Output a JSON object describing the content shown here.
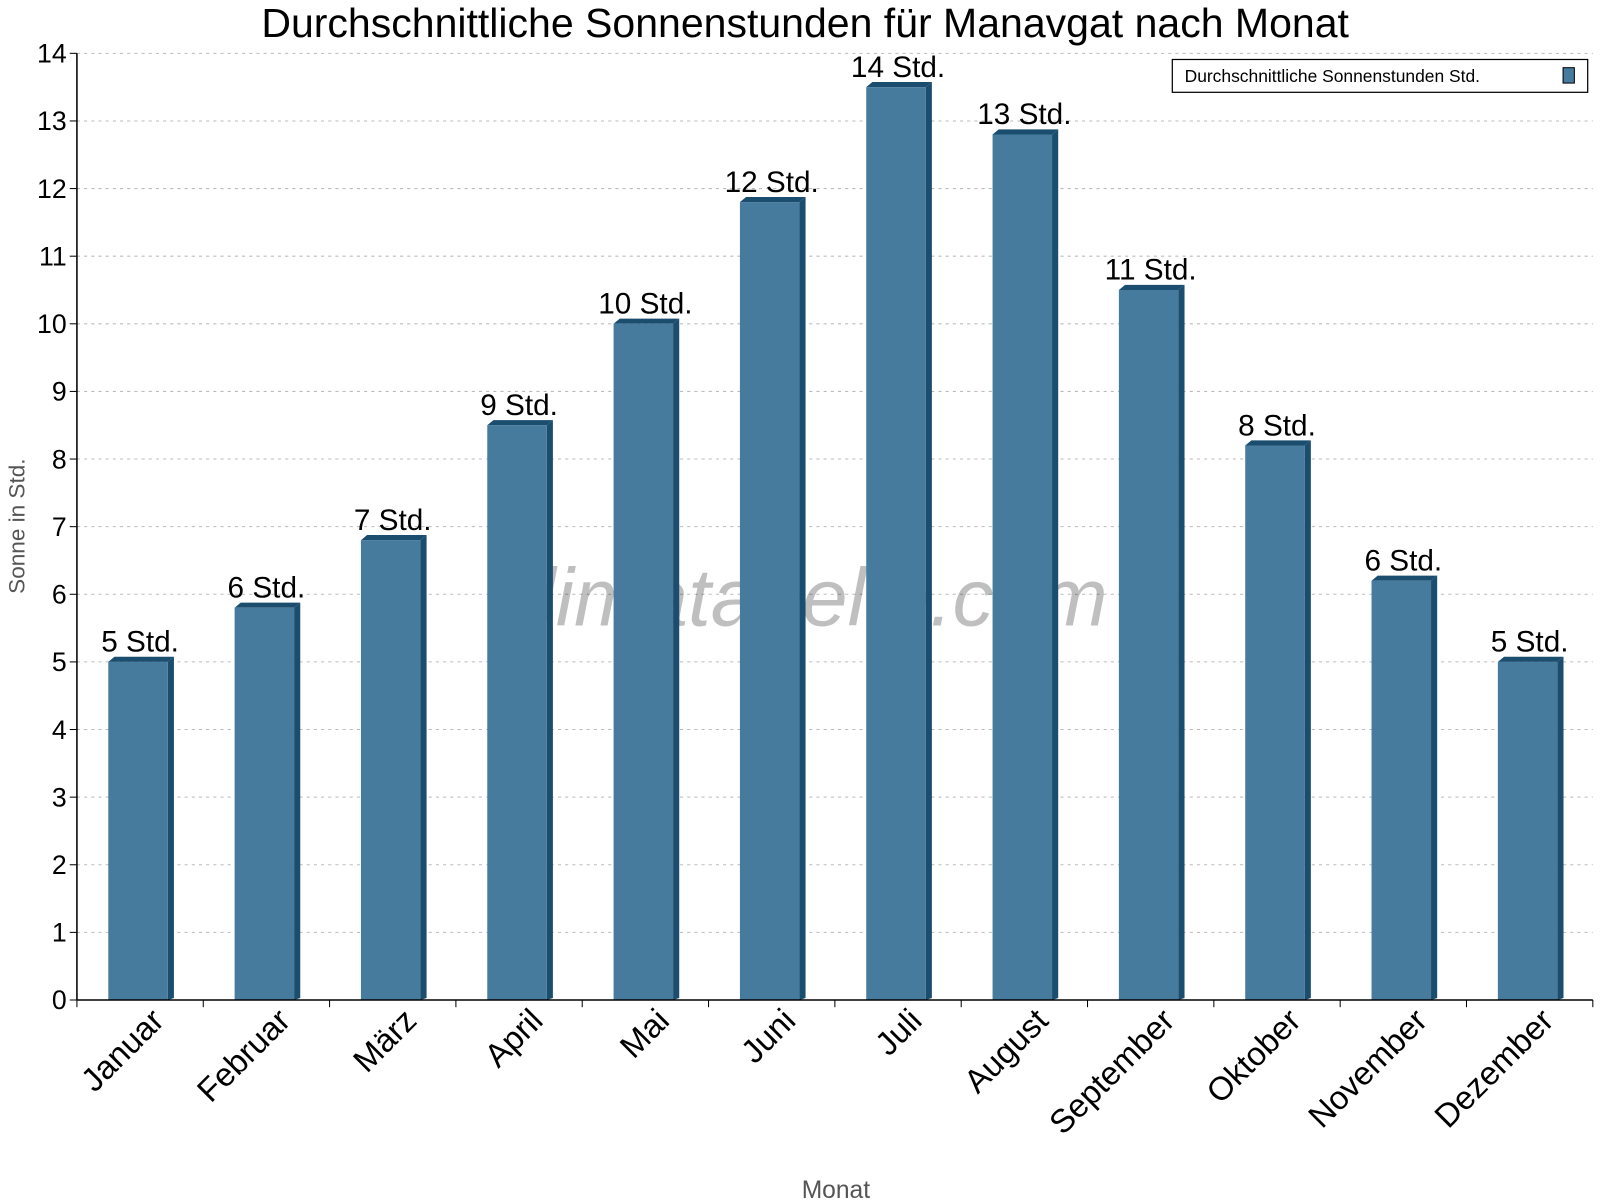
{
  "chart_data": {
    "type": "bar",
    "title": "Durchschnittliche Sonnenstunden für Manavgat nach Monat",
    "xlabel": "Monat",
    "ylabel": "Sonne in Std.",
    "ylim": [
      0,
      14
    ],
    "yticks": [
      "0",
      "1",
      "2",
      "3",
      "4",
      "5",
      "6",
      "7",
      "8",
      "9",
      "10",
      "11",
      "12",
      "13",
      "14"
    ],
    "grid": true,
    "legend_position": "top-right",
    "categories": [
      "Januar",
      "Februar",
      "März",
      "April",
      "Mai",
      "Juni",
      "Juli",
      "August",
      "September",
      "Oktober",
      "November",
      "Dezember"
    ],
    "series": [
      {
        "name": "Durchschnittliche Sonnenstunden Std.",
        "values": [
          5.0,
          5.8,
          6.8,
          8.5,
          10.0,
          11.8,
          13.5,
          12.8,
          10.5,
          8.2,
          6.2,
          5.0
        ],
        "labels": [
          "5 Std.",
          "6 Std.",
          "7 Std.",
          "9 Std.",
          "10 Std.",
          "12 Std.",
          "14 Std.",
          "13 Std.",
          "11 Std.",
          "8 Std.",
          "6 Std.",
          "5 Std."
        ]
      }
    ],
    "watermark": "klimatabelle.com",
    "colors": {
      "bar": "#467b9e",
      "bar_dark": "#1b4d6e",
      "grid": "#bbbbbb"
    }
  }
}
